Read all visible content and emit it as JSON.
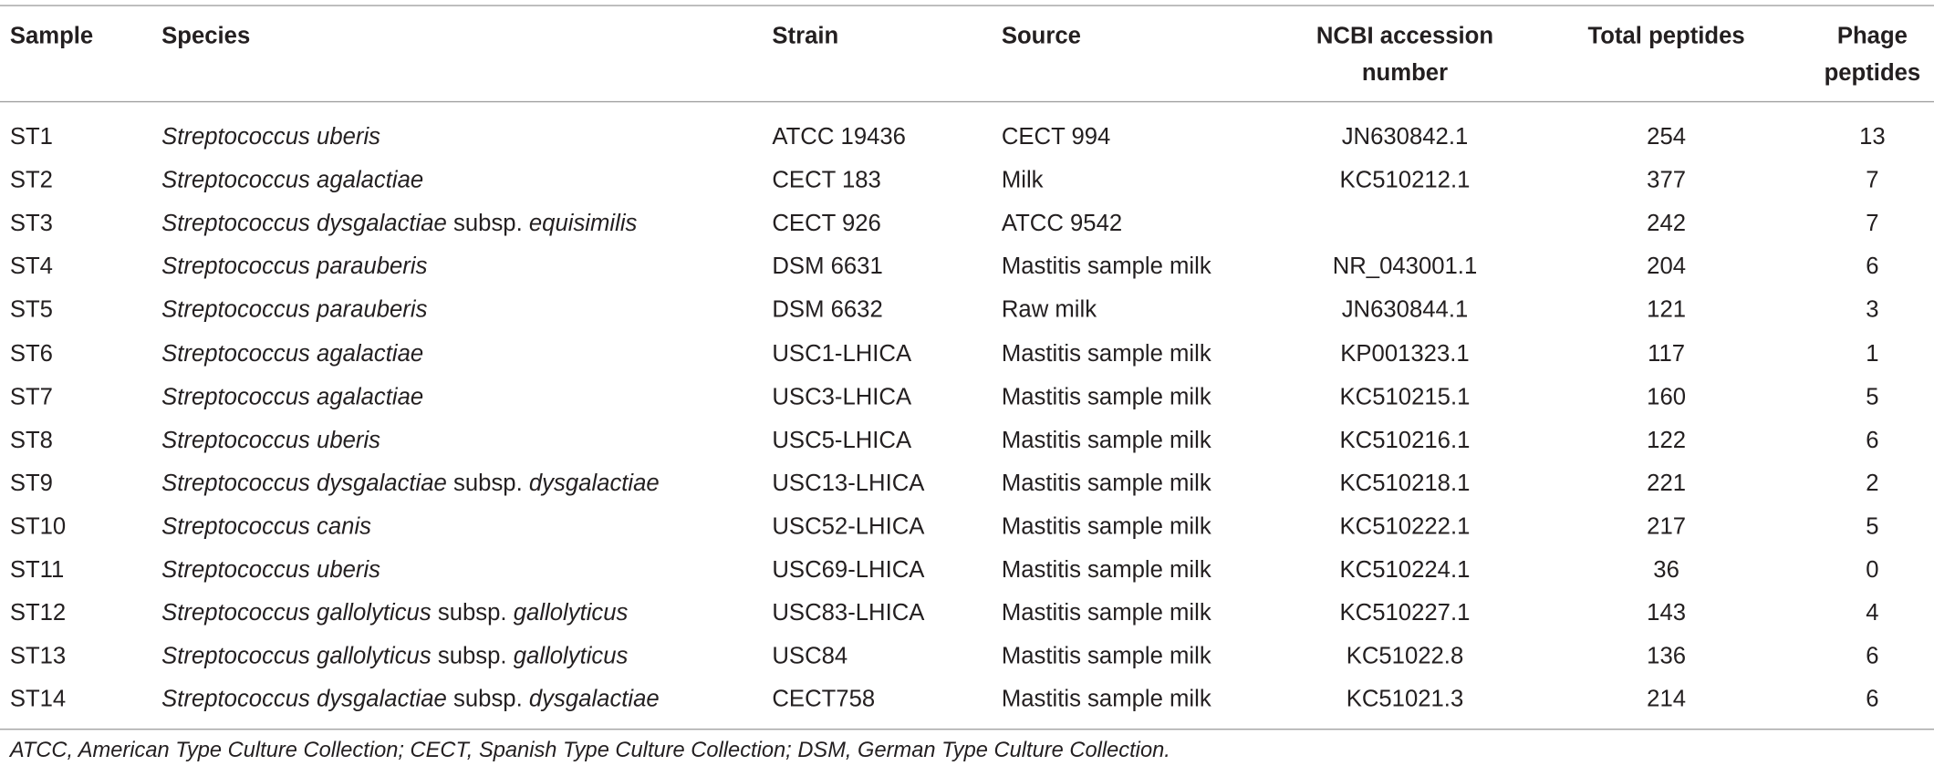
{
  "table": {
    "headers": [
      "Sample",
      "Species",
      "Strain",
      "Source",
      "NCBI accession number",
      "Total peptides",
      "Phage peptides"
    ],
    "rows": [
      [
        "ST1",
        [
          {
            "text": "Streptococcus uberis",
            "italic": true
          }
        ],
        "ATCC 19436",
        "CECT 994",
        "JN630842.1",
        254,
        13
      ],
      [
        "ST2",
        [
          {
            "text": "Streptococcus agalactiae",
            "italic": true
          }
        ],
        "CECT 183",
        "Milk",
        "KC510212.1",
        377,
        7
      ],
      [
        "ST3",
        [
          {
            "text": "Streptococcus dysgalactiae",
            "italic": true
          },
          {
            "text": "subsp.",
            "italic": false
          },
          {
            "text": "equisimilis",
            "italic": true
          }
        ],
        "CECT 926",
        "ATCC 9542",
        null,
        242,
        7
      ],
      [
        "ST4",
        [
          {
            "text": "Streptococcus parauberis",
            "italic": true
          }
        ],
        "DSM 6631",
        "Mastitis sample milk",
        "NR_043001.1",
        204,
        6
      ],
      [
        "ST5",
        [
          {
            "text": "Streptococcus parauberis",
            "italic": true
          }
        ],
        "DSM 6632",
        "Raw milk",
        "JN630844.1",
        121,
        3
      ],
      [
        "ST6",
        [
          {
            "text": "Streptococcus agalactiae",
            "italic": true
          }
        ],
        "USC1-LHICA",
        "Mastitis sample milk",
        "KP001323.1",
        117,
        1
      ],
      [
        "ST7",
        [
          {
            "text": "Streptococcus agalactiae",
            "italic": true
          }
        ],
        "USC3-LHICA",
        "Mastitis sample milk",
        "KC510215.1",
        160,
        5
      ],
      [
        "ST8",
        [
          {
            "text": "Streptococcus uberis",
            "italic": true
          }
        ],
        "USC5-LHICA",
        "Mastitis sample milk",
        "KC510216.1",
        122,
        6
      ],
      [
        "ST9",
        [
          {
            "text": "Streptococcus dysgalactiae",
            "italic": true
          },
          {
            "text": "subsp.",
            "italic": false
          },
          {
            "text": "dysgalactiae",
            "italic": true
          }
        ],
        "USC13-LHICA",
        "Mastitis sample milk",
        "KC510218.1",
        221,
        2
      ],
      [
        "ST10",
        [
          {
            "text": "Streptococcus canis",
            "italic": true
          }
        ],
        "USC52-LHICA",
        "Mastitis sample milk",
        "KC510222.1",
        217,
        5
      ],
      [
        "ST11",
        [
          {
            "text": "Streptococcus uberis",
            "italic": true
          }
        ],
        "USC69-LHICA",
        "Mastitis sample milk",
        "KC510224.1",
        36,
        0
      ],
      [
        "ST12",
        [
          {
            "text": "Streptococcus gallolyticus",
            "italic": true
          },
          {
            "text": "subsp.",
            "italic": false
          },
          {
            "text": "gallolyticus",
            "italic": true
          }
        ],
        "USC83-LHICA",
        "Mastitis sample milk",
        "KC510227.1",
        143,
        4
      ],
      [
        "ST13",
        [
          {
            "text": "Streptococcus gallolyticus",
            "italic": true
          },
          {
            "text": "subsp.",
            "italic": false
          },
          {
            "text": "gallolyticus",
            "italic": true
          }
        ],
        "USC84",
        "Mastitis sample milk",
        "KC51022.8",
        136,
        6
      ],
      [
        "ST14",
        [
          {
            "text": "Streptococcus dysgalactiae",
            "italic": true
          },
          {
            "text": "subsp.",
            "italic": false
          },
          {
            "text": "dysgalactiae",
            "italic": true
          }
        ],
        "CECT758",
        "Mastitis sample milk",
        "KC51021.3",
        214,
        6
      ]
    ],
    "footnote": "ATCC, American Type Culture Collection; CECT, Spanish Type Culture Collection; DSM, German Type Culture Collection."
  }
}
